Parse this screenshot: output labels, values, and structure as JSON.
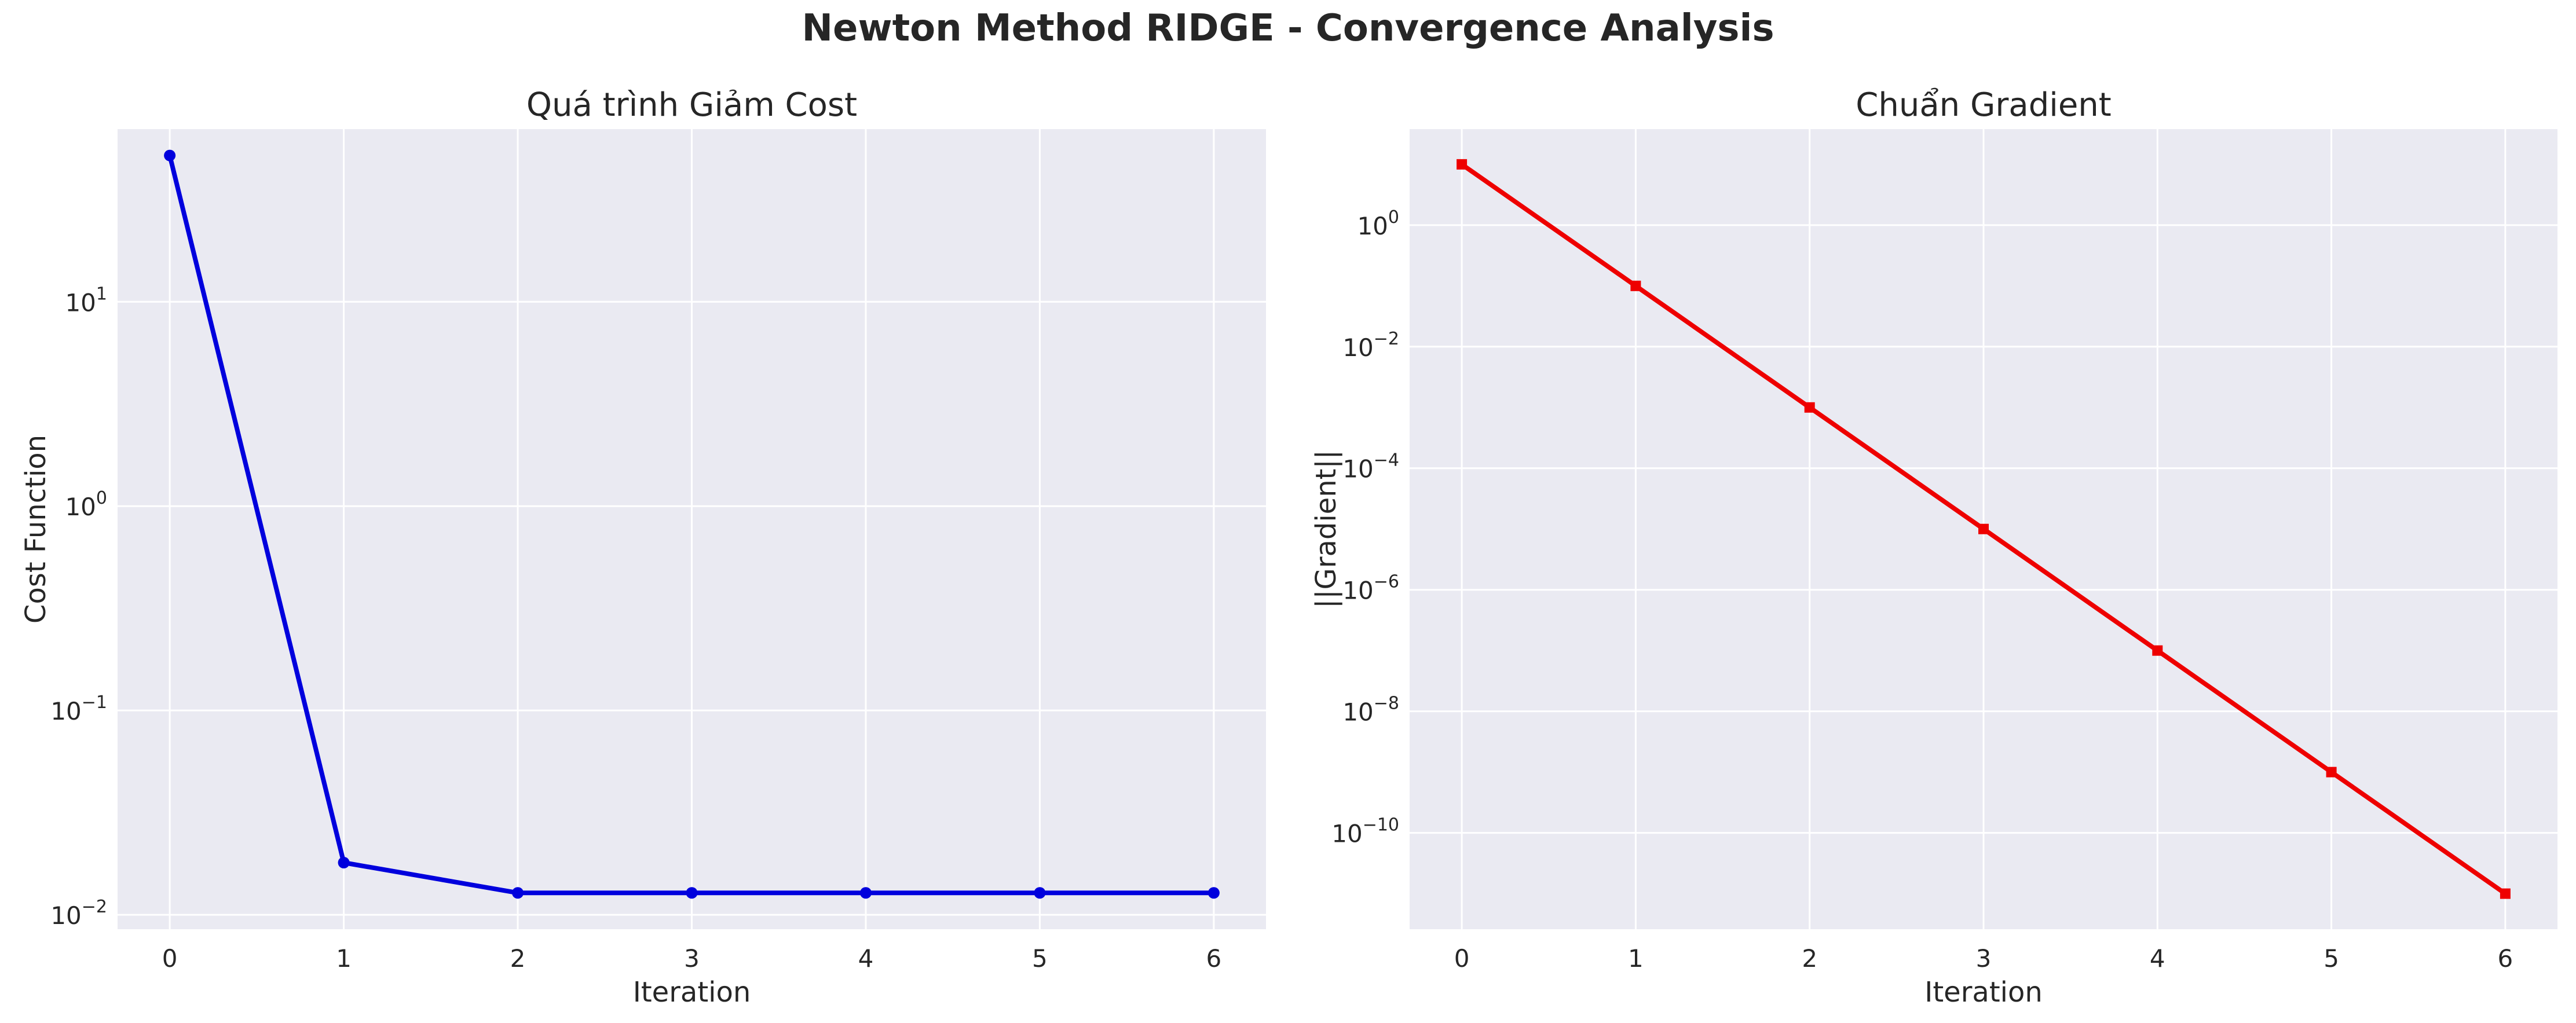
{
  "figure": {
    "suptitle": "Newton Method RIDGE - Convergence Analysis"
  },
  "chart_data": [
    {
      "type": "line",
      "title": "Quá trình Giảm Cost",
      "xlabel": "Iteration",
      "ylabel": "Cost Function",
      "yscale": "log",
      "x": [
        0,
        1,
        2,
        3,
        4,
        5,
        6
      ],
      "series": [
        {
          "values": [
            52,
            0.018,
            0.0128,
            0.0128,
            0.0128,
            0.0128,
            0.0128
          ],
          "color": "#0000dd",
          "marker": "circle"
        }
      ],
      "xlim": [
        -0.3,
        6.3
      ],
      "ylim": [
        0.0085,
        70
      ],
      "xticks": [
        "0",
        "1",
        "2",
        "3",
        "4",
        "5",
        "6"
      ],
      "yticks": [
        {
          "value": 0.01,
          "base": "10",
          "exp": "−2"
        },
        {
          "value": 0.1,
          "base": "10",
          "exp": "−1"
        },
        {
          "value": 1,
          "base": "10",
          "exp": "0"
        },
        {
          "value": 10,
          "base": "10",
          "exp": "1"
        }
      ],
      "grid": true,
      "background": "#eaeaf2"
    },
    {
      "type": "line",
      "title": "Chuẩn Gradient",
      "xlabel": "Iteration",
      "ylabel": "||Gradient||",
      "yscale": "log",
      "x": [
        0,
        1,
        2,
        3,
        4,
        5,
        6
      ],
      "series": [
        {
          "values": [
            10,
            0.1,
            0.001,
            1e-05,
            1e-07,
            1e-09,
            1e-11
          ],
          "color": "#ee0000",
          "marker": "square"
        }
      ],
      "xlim": [
        -0.3,
        6.3
      ],
      "ylim": [
        2.6e-12,
        38
      ],
      "xticks": [
        "0",
        "1",
        "2",
        "3",
        "4",
        "5",
        "6"
      ],
      "yticks": [
        {
          "value": 1e-10,
          "base": "10",
          "exp": "−10"
        },
        {
          "value": 1e-08,
          "base": "10",
          "exp": "−8"
        },
        {
          "value": 1e-06,
          "base": "10",
          "exp": "−6"
        },
        {
          "value": 0.0001,
          "base": "10",
          "exp": "−4"
        },
        {
          "value": 0.01,
          "base": "10",
          "exp": "−2"
        },
        {
          "value": 1,
          "base": "10",
          "exp": "0"
        }
      ],
      "grid": true,
      "background": "#eaeaf2"
    }
  ]
}
